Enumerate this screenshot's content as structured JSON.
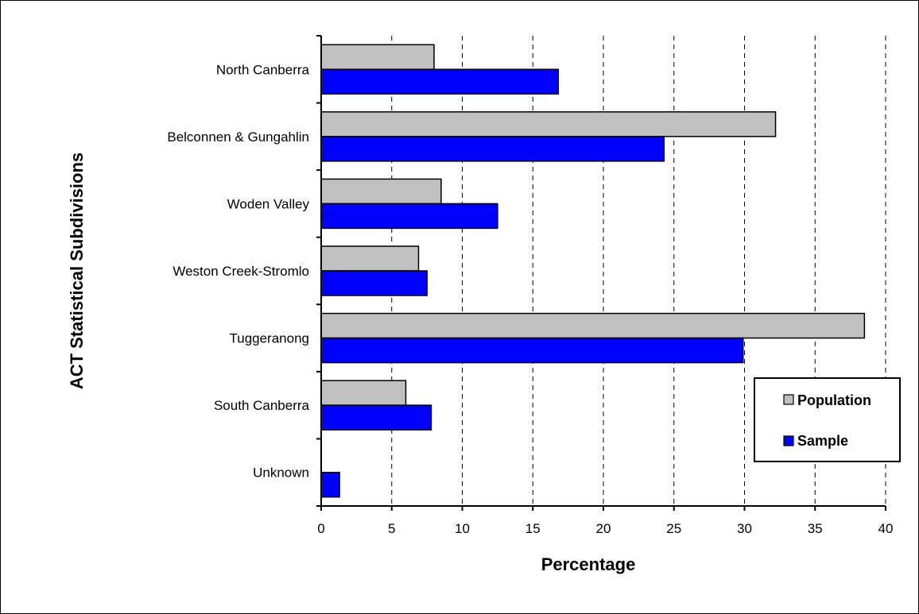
{
  "chart_data": {
    "type": "bar",
    "orientation": "horizontal",
    "categories": [
      "North Canberra",
      "Belconnen & Gungahlin",
      "Woden Valley",
      "Weston Creek-Stromlo",
      "Tuggeranong",
      "South Canberra",
      "Unknown"
    ],
    "series": [
      {
        "name": "Population",
        "values": [
          8.0,
          32.2,
          8.5,
          6.9,
          38.5,
          6.0,
          0
        ],
        "color": "#c0c0c0"
      },
      {
        "name": "Sample",
        "values": [
          16.8,
          24.3,
          12.5,
          7.5,
          29.9,
          7.8,
          1.3
        ],
        "color": "#0000ff"
      }
    ],
    "xlabel": "Percentage",
    "ylabel": "ACT Statistical Subdivisions",
    "xlim": [
      0,
      40
    ],
    "xticks": [
      0,
      5,
      10,
      15,
      20,
      25,
      30,
      35,
      40
    ],
    "grid": "vertical dashed",
    "legend_position": "right"
  }
}
